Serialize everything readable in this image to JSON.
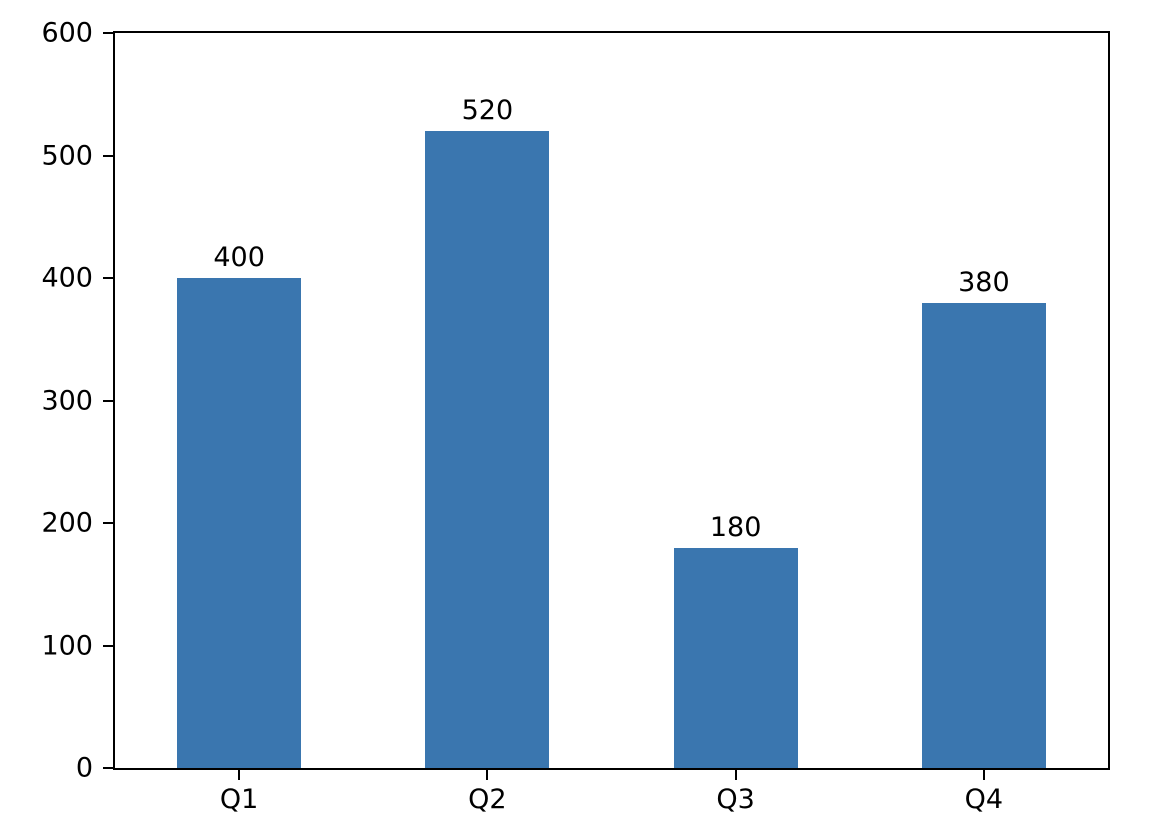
{
  "chart_data": {
    "type": "bar",
    "categories": [
      "Q1",
      "Q2",
      "Q3",
      "Q4"
    ],
    "values": [
      400,
      520,
      180,
      380
    ],
    "bar_labels": [
      "400",
      "520",
      "180",
      "380"
    ],
    "title": "",
    "xlabel": "",
    "ylabel": "",
    "ylim": [
      0,
      600
    ],
    "yticks": [
      0,
      100,
      200,
      300,
      400,
      500,
      600
    ],
    "ytick_labels": [
      "0",
      "100",
      "200",
      "300",
      "400",
      "500",
      "600"
    ],
    "bar_width_fraction": 0.5,
    "grid": false,
    "legend": null,
    "colors": {
      "bar": "#3a76af",
      "axis": "#000000",
      "text": "#000000",
      "background": "#ffffff"
    }
  }
}
